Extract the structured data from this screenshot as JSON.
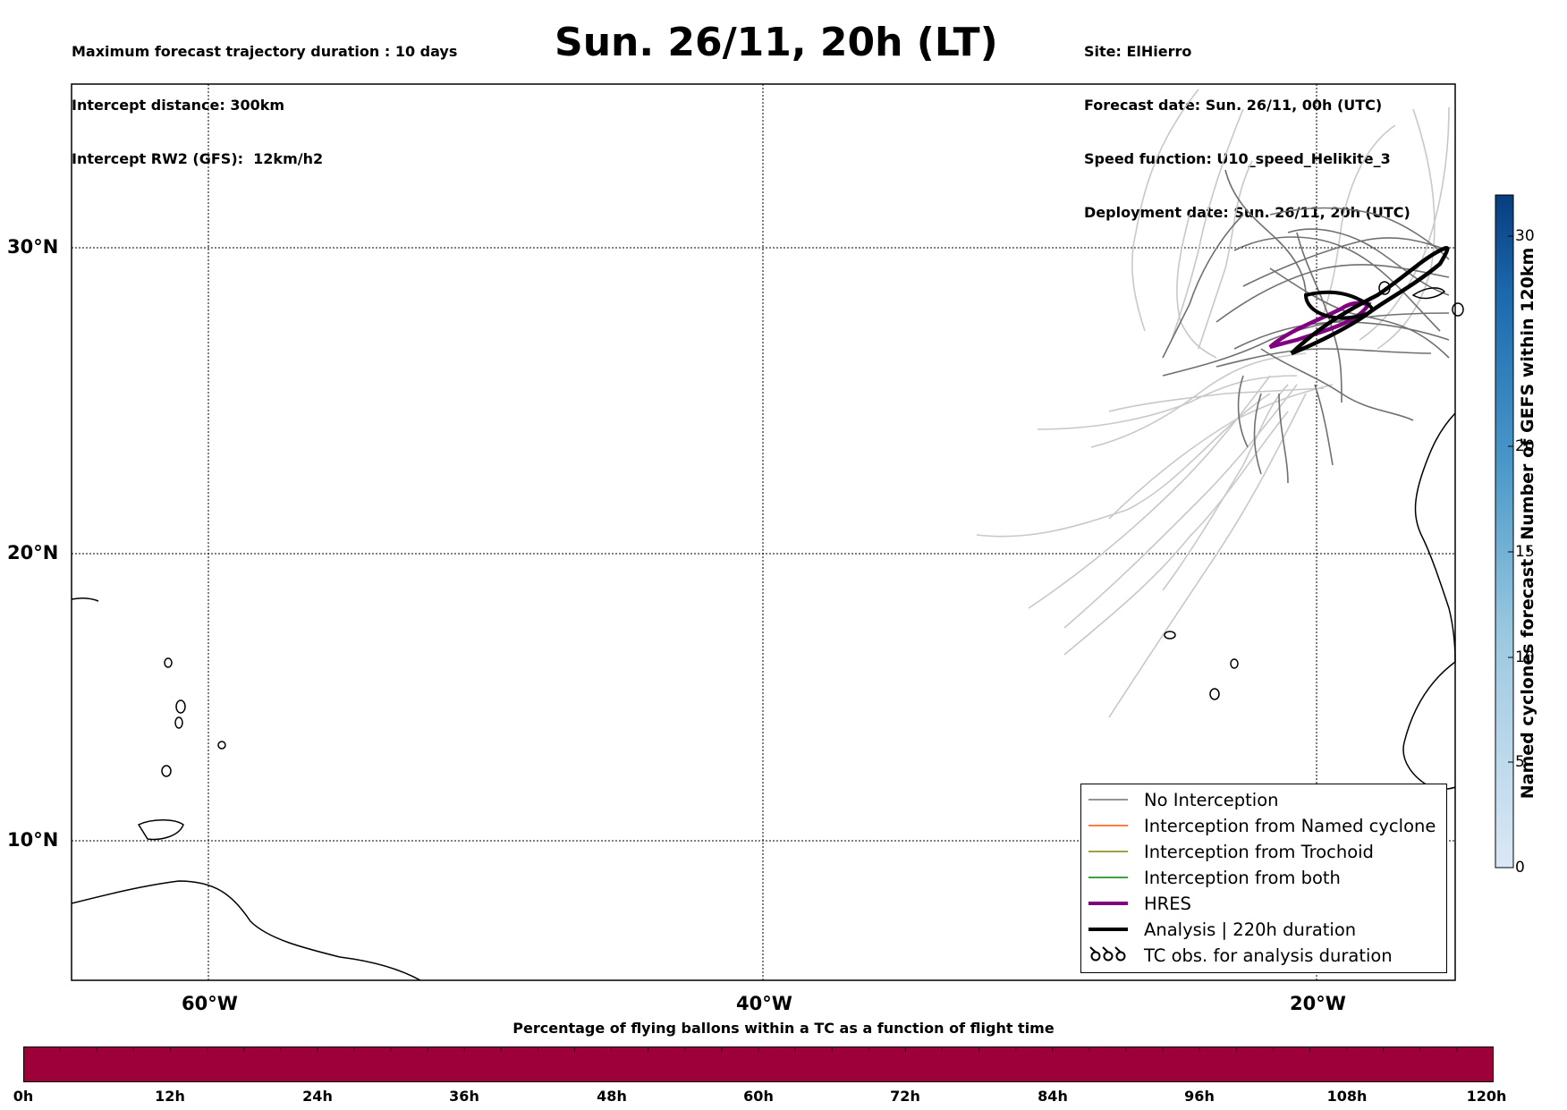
{
  "header": {
    "left_lines": [
      "Maximum forecast trajectory duration : 10 days",
      "Intercept distance: 300km",
      "Intercept RW2 (GFS):  12km/h2"
    ],
    "right_lines": [
      "Site: ElHierro",
      "Forecast date: Sun. 26/11, 00h (UTC)",
      "Speed function: U10_speed_Helikite_3",
      "Deployment date: Sun. 26/11, 20h (UTC)"
    ],
    "title": "Sun. 26/11, 20h (LT)"
  },
  "map": {
    "lat_ticks": [
      "30°N",
      "20°N",
      "10°N"
    ],
    "lon_ticks": [
      "60°W",
      "40°W",
      "20°W"
    ],
    "colors": {
      "no_interception": "#707070",
      "ensemble_light": "#c8c8c8",
      "named_cyclone": "#ff5000",
      "trochoid": "#808000",
      "both": "#008000",
      "hres": "#800080",
      "analysis": "#000000"
    }
  },
  "legend": {
    "items": [
      {
        "label": "No Interception",
        "icon": "line-gray"
      },
      {
        "label": "Interception from Named cyclone",
        "icon": "line-orange"
      },
      {
        "label": "Interception from Trochoid",
        "icon": "line-olive"
      },
      {
        "label": "Interception from both",
        "icon": "line-green"
      },
      {
        "label": "HRES",
        "icon": "line-purple-thick"
      },
      {
        "label": "Analysis | 220h duration",
        "icon": "line-black-thick"
      },
      {
        "label": "TC obs. for analysis duration",
        "icon": "cyclone-symbol"
      }
    ]
  },
  "colorbar": {
    "label": "Named cyclones forecast - Number of GEFS within 120km",
    "ticks": [
      "0",
      "5",
      "10",
      "15",
      "20",
      "30"
    ],
    "range": [
      0,
      32
    ]
  },
  "bottom_bar": {
    "title": "Percentage of flying ballons within a TC as a function of flight time",
    "ticks": [
      "0h",
      "12h",
      "24h",
      "36h",
      "48h",
      "60h",
      "72h",
      "84h",
      "96h",
      "108h",
      "120h"
    ],
    "color": "#9e003a"
  }
}
